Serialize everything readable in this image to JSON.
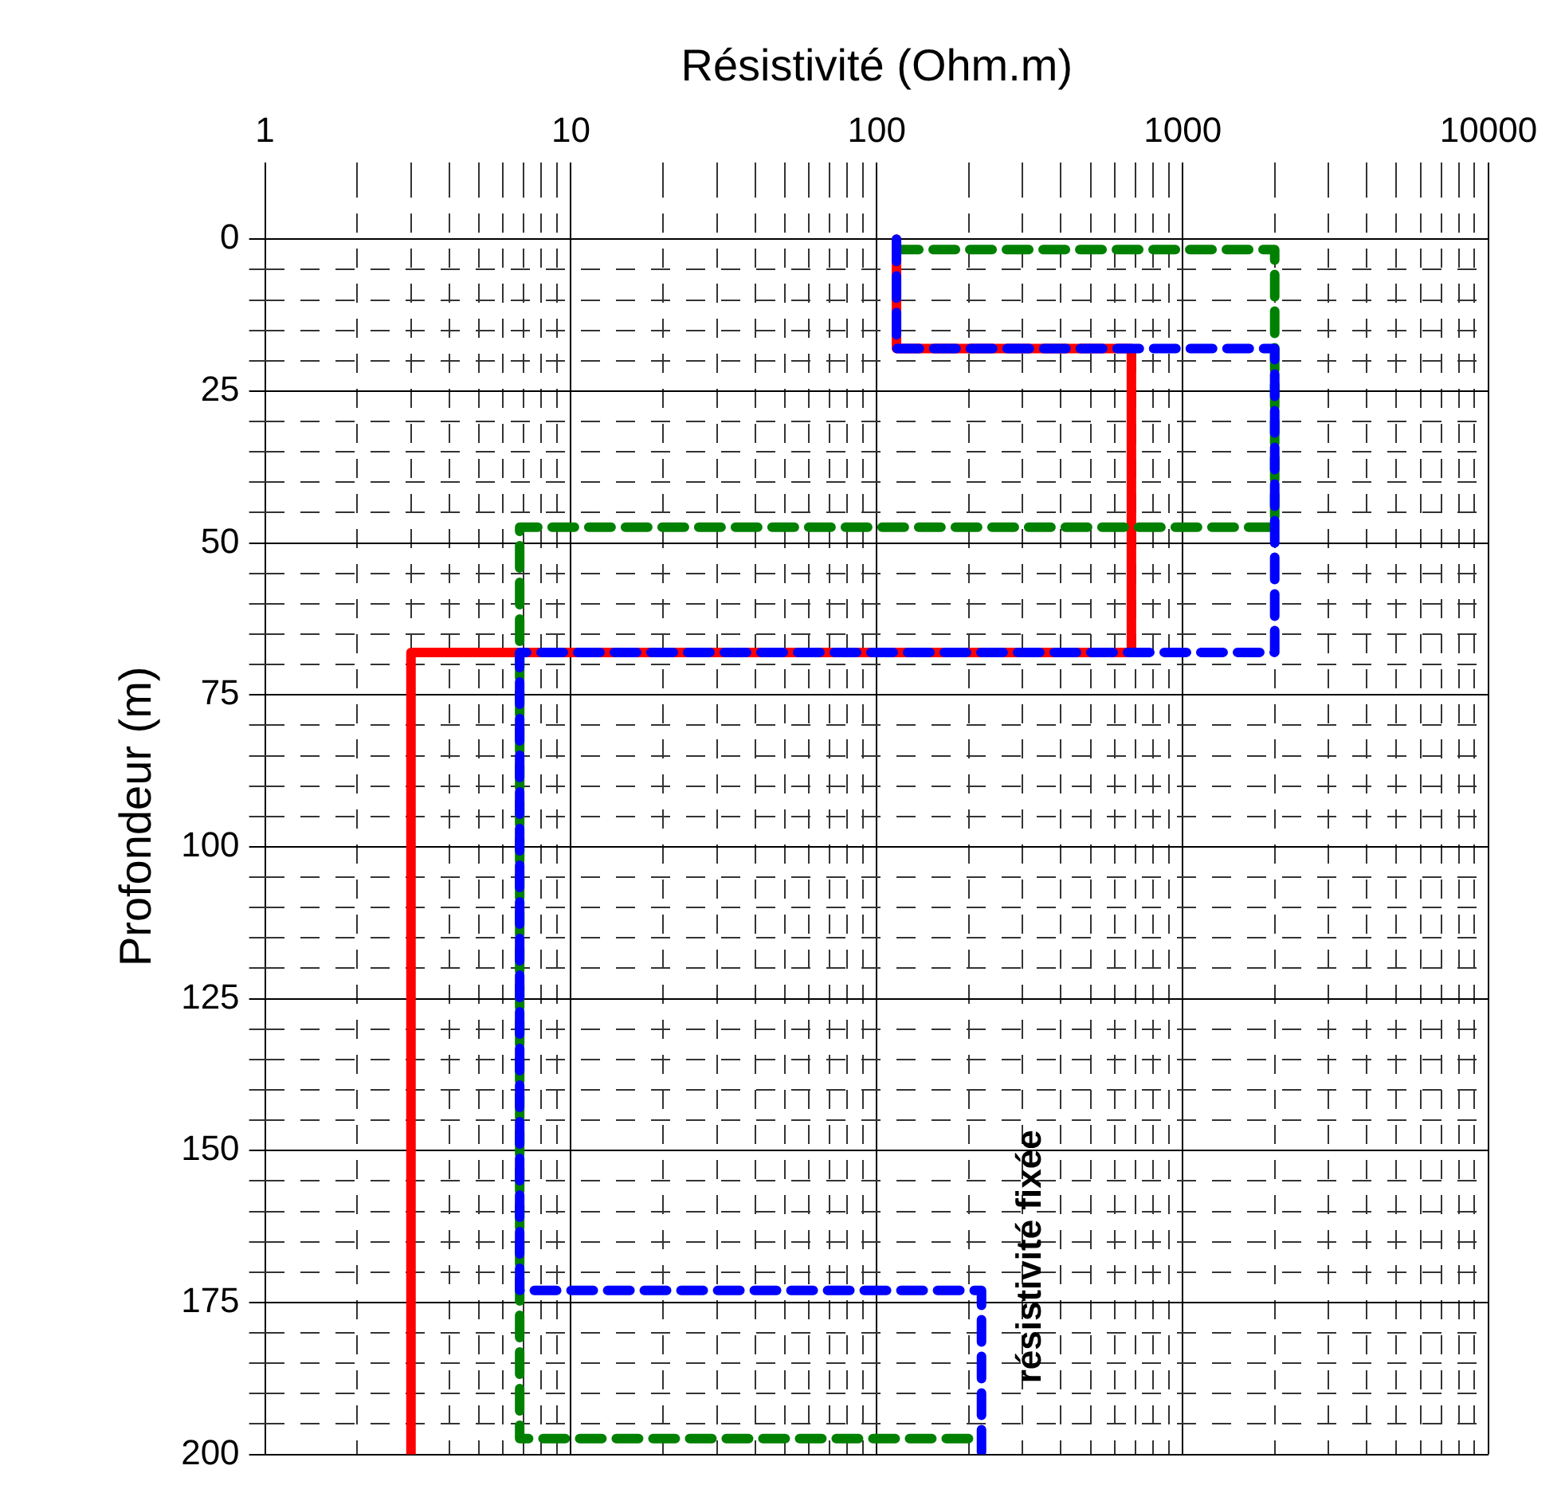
{
  "chart_data": {
    "type": "line",
    "xlabel": "Résistivité (Ohm.m)",
    "ylabel": "Profondeur (m)",
    "log": "x",
    "grid": true,
    "legend": false,
    "marker": "none",
    "xlim": [
      1,
      10000
    ],
    "xticks": [
      1,
      {
        "value": 2,
        "label": null
      },
      {
        "value": 3,
        "label": null
      },
      {
        "value": 4,
        "label": null
      },
      {
        "value": 5,
        "label": null
      },
      {
        "value": 6,
        "label": null
      },
      {
        "value": 7,
        "label": null
      },
      {
        "value": 8,
        "label": null
      },
      {
        "value": 9,
        "label": null
      },
      10,
      {
        "value": 20,
        "label": null
      },
      {
        "value": 30,
        "label": null
      },
      {
        "value": 40,
        "label": null
      },
      {
        "value": 50,
        "label": null
      },
      {
        "value": 60,
        "label": null
      },
      {
        "value": 70,
        "label": null
      },
      {
        "value": 80,
        "label": null
      },
      {
        "value": 90,
        "label": null
      },
      100,
      {
        "value": 200,
        "label": null
      },
      {
        "value": 300,
        "label": null
      },
      {
        "value": 400,
        "label": null
      },
      {
        "value": 500,
        "label": null
      },
      {
        "value": 600,
        "label": null
      },
      {
        "value": 700,
        "label": null
      },
      {
        "value": 800,
        "label": null
      },
      {
        "value": 900,
        "label": null
      },
      1000,
      {
        "value": 2000,
        "label": null
      },
      {
        "value": 3000,
        "label": null
      },
      {
        "value": 4000,
        "label": null
      },
      {
        "value": 5000,
        "label": null
      },
      {
        "value": 6000,
        "label": null
      },
      {
        "value": 7000,
        "label": null
      },
      {
        "value": 8000,
        "label": null
      },
      {
        "value": 9000,
        "label": null
      },
      10000
    ],
    "ylim": [
      200,
      -10
    ],
    "yticks": [
      0,
      {
        "value": 5,
        "label": null
      },
      {
        "value": 10,
        "label": null
      },
      {
        "value": 15,
        "label": null
      },
      {
        "value": 20,
        "label": null
      },
      25,
      {
        "value": 30,
        "label": null
      },
      {
        "value": 35,
        "label": null
      },
      {
        "value": 40,
        "label": null
      },
      {
        "value": 45,
        "label": null
      },
      50,
      {
        "value": 55,
        "label": null
      },
      {
        "value": 60,
        "label": null
      },
      {
        "value": 65,
        "label": null
      },
      {
        "value": 70,
        "label": null
      },
      75,
      {
        "value": 80,
        "label": null
      },
      {
        "value": 85,
        "label": null
      },
      {
        "value": 90,
        "label": null
      },
      {
        "value": 95,
        "label": null
      },
      100,
      {
        "value": 105,
        "label": null
      },
      {
        "value": 110,
        "label": null
      },
      {
        "value": 115,
        "label": null
      },
      {
        "value": 120,
        "label": null
      },
      125,
      {
        "value": 130,
        "label": null
      },
      {
        "value": 135,
        "label": null
      },
      {
        "value": 140,
        "label": null
      },
      {
        "value": 145,
        "label": null
      },
      150,
      {
        "value": 155,
        "label": null
      },
      {
        "value": 160,
        "label": null
      },
      {
        "value": 165,
        "label": null
      },
      {
        "value": 170,
        "label": null
      },
      175,
      {
        "value": 180,
        "label": null
      },
      {
        "value": 185,
        "label": null
      },
      {
        "value": 190,
        "label": null
      },
      {
        "value": 195,
        "label": null
      },
      200
    ],
    "series": [
      {
        "color": "#ff0000",
        "line_style": "solid",
        "x": [
          116,
          116,
          680,
          680,
          3,
          3
        ],
        "values": [
          0,
          18,
          18,
          68,
          68,
          200
        ]
      },
      {
        "color": "#008000",
        "line_style": "dashed",
        "x": [
          116,
          2000,
          2000,
          6.8,
          6.8,
          220
        ],
        "values": [
          1.7,
          1.7,
          47.4,
          47.4,
          197.4,
          197.4
        ]
      },
      {
        "color": "#0000ff",
        "line_style": "dashed",
        "x": [
          116,
          116,
          2000,
          2000,
          6.8,
          6.8,
          220,
          220
        ],
        "values": [
          0,
          18,
          18,
          68,
          68,
          173,
          173,
          200
        ]
      }
    ],
    "annotations": [
      "résistivité fixée"
    ]
  }
}
